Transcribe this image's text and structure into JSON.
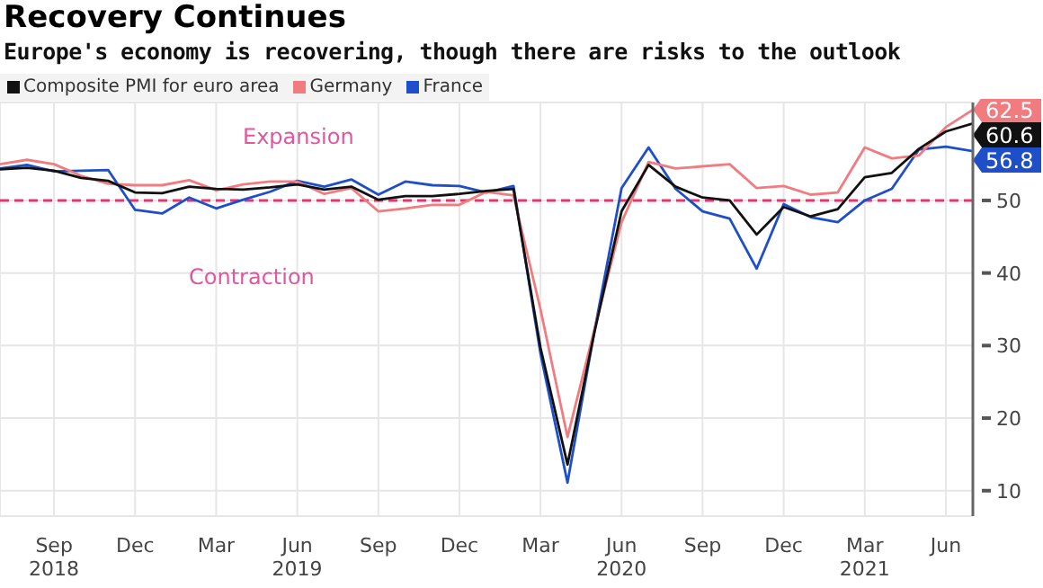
{
  "chart_data": {
    "type": "line",
    "title": "Recovery Continues",
    "subtitle": "Europe's economy is recovering, though there are risks to the outlook",
    "x": [
      "2018-07",
      "2018-08",
      "2018-09",
      "2018-10",
      "2018-11",
      "2018-12",
      "2019-01",
      "2019-02",
      "2019-03",
      "2019-04",
      "2019-05",
      "2019-06",
      "2019-07",
      "2019-08",
      "2019-09",
      "2019-10",
      "2019-11",
      "2019-12",
      "2020-01",
      "2020-02",
      "2020-03",
      "2020-04",
      "2020-05",
      "2020-06",
      "2020-07",
      "2020-08",
      "2020-09",
      "2020-10",
      "2020-11",
      "2020-12",
      "2021-01",
      "2021-02",
      "2021-03",
      "2021-04",
      "2021-05",
      "2021-06",
      "2021-07"
    ],
    "series": [
      {
        "name": "Composite PMI for euro area",
        "color": "#111111",
        "values": [
          54.3,
          54.5,
          54.1,
          53.1,
          52.7,
          51.1,
          51.0,
          51.9,
          51.6,
          51.5,
          51.8,
          52.2,
          51.5,
          51.9,
          50.1,
          50.6,
          50.6,
          50.9,
          51.3,
          51.6,
          29.7,
          13.6,
          31.9,
          48.5,
          54.9,
          51.9,
          50.4,
          50.0,
          45.3,
          49.1,
          47.8,
          48.8,
          53.2,
          53.8,
          57.1,
          59.5,
          60.6
        ],
        "value_labels": [
          null,
          null,
          null,
          null,
          null,
          null,
          null,
          null,
          null,
          null,
          null,
          null,
          null,
          null,
          null,
          null,
          null,
          null,
          null,
          null,
          null,
          null,
          null,
          null,
          null,
          null,
          null,
          null,
          null,
          null,
          null,
          null,
          null,
          null,
          null,
          null,
          "60.6"
        ]
      },
      {
        "name": "Germany",
        "color": "#f07c80",
        "values": [
          55.0,
          55.6,
          55.0,
          53.4,
          52.3,
          52.1,
          52.1,
          52.8,
          51.4,
          52.2,
          52.6,
          52.6,
          50.9,
          51.7,
          48.5,
          48.9,
          49.4,
          49.4,
          51.2,
          50.7,
          35.0,
          17.4,
          32.3,
          47.0,
          55.3,
          54.4,
          54.7,
          55.0,
          51.7,
          52.0,
          50.8,
          51.1,
          57.3,
          55.8,
          56.2,
          60.1,
          62.5
        ],
        "value_labels": [
          null,
          null,
          null,
          null,
          null,
          null,
          null,
          null,
          null,
          null,
          null,
          null,
          null,
          null,
          null,
          null,
          null,
          null,
          null,
          null,
          null,
          null,
          null,
          null,
          null,
          null,
          null,
          null,
          null,
          null,
          null,
          null,
          null,
          null,
          null,
          null,
          "62.5"
        ]
      },
      {
        "name": "France",
        "color": "#1f4fc8",
        "values": [
          54.4,
          54.9,
          54.0,
          54.1,
          54.2,
          48.7,
          48.2,
          50.4,
          48.9,
          50.1,
          51.2,
          52.7,
          51.9,
          52.9,
          50.8,
          52.6,
          52.1,
          52.0,
          51.1,
          52.0,
          28.9,
          11.1,
          32.1,
          51.7,
          57.3,
          51.6,
          48.5,
          47.5,
          40.6,
          49.5,
          47.7,
          47.0,
          50.0,
          51.6,
          57.0,
          57.4,
          56.8
        ],
        "value_labels": [
          null,
          null,
          null,
          null,
          null,
          null,
          null,
          null,
          null,
          null,
          null,
          null,
          null,
          null,
          null,
          null,
          null,
          null,
          null,
          null,
          null,
          null,
          null,
          null,
          null,
          null,
          null,
          null,
          null,
          null,
          null,
          null,
          null,
          null,
          null,
          null,
          "56.8"
        ]
      }
    ],
    "xlim": [
      "2018-07",
      "2021-07"
    ],
    "xticks": [
      {
        "value": "2018-09",
        "label": "Sep 2018"
      },
      {
        "value": "2018-12",
        "label": "Dec"
      },
      {
        "value": "2019-03",
        "label": "Mar"
      },
      {
        "value": "2019-06",
        "label": "Jun 2019"
      },
      {
        "value": "2019-09",
        "label": "Sep"
      },
      {
        "value": "2019-12",
        "label": "Dec"
      },
      {
        "value": "2020-03",
        "label": "Mar"
      },
      {
        "value": "2020-06",
        "label": "Jun 2020"
      },
      {
        "value": "2020-09",
        "label": "Sep"
      },
      {
        "value": "2020-12",
        "label": "Dec"
      },
      {
        "value": "2021-03",
        "label": "Mar 2021"
      },
      {
        "value": "2021-06",
        "label": "Jun"
      }
    ],
    "ylim": [
      6.5,
      63.5
    ],
    "yticks": [
      10,
      20,
      30,
      40,
      50
    ],
    "ref_lines": [
      {
        "axis": "y",
        "value": 50,
        "color": "#e8336f",
        "line_style": "dashed"
      }
    ],
    "annotations": [
      "Expansion",
      "Contraction"
    ],
    "grid": true,
    "legend": "top left",
    "marker": "none",
    "line_style": "solid"
  }
}
